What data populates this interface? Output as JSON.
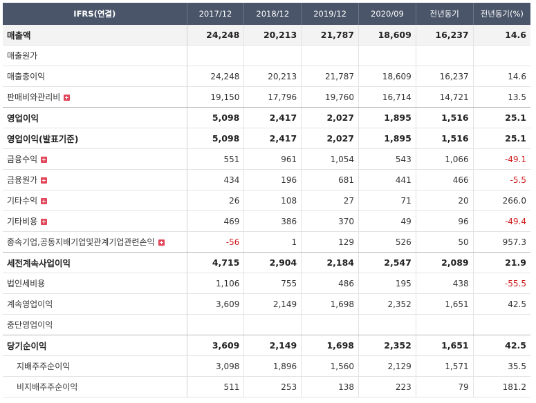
{
  "table": {
    "header": [
      "IFRS(연결)",
      "2017/12",
      "2018/12",
      "2019/12",
      "2020/09",
      "전년동기",
      "전년동기(%)"
    ],
    "rows": [
      {
        "label": "매출액",
        "bold": true,
        "expand": false,
        "indent": false,
        "values": [
          "24,248",
          "20,213",
          "21,787",
          "18,609",
          "16,237",
          "14.6"
        ]
      },
      {
        "label": "매출원가",
        "bold": false,
        "expand": false,
        "indent": false,
        "values": [
          "",
          "",
          "",
          "",
          "",
          ""
        ]
      },
      {
        "label": "매출총이익",
        "bold": false,
        "expand": false,
        "indent": false,
        "values": [
          "24,248",
          "20,213",
          "21,787",
          "18,609",
          "16,237",
          "14.6"
        ]
      },
      {
        "label": "판매비와관리비",
        "bold": false,
        "expand": true,
        "indent": false,
        "values": [
          "19,150",
          "17,796",
          "19,760",
          "16,714",
          "14,721",
          "13.5"
        ]
      },
      {
        "label": "영업이익",
        "bold": true,
        "expand": false,
        "indent": false,
        "values": [
          "5,098",
          "2,417",
          "2,027",
          "1,895",
          "1,516",
          "25.1"
        ]
      },
      {
        "label": "영업이익(발표기준)",
        "bold": true,
        "expand": false,
        "indent": false,
        "values": [
          "5,098",
          "2,417",
          "2,027",
          "1,895",
          "1,516",
          "25.1"
        ]
      },
      {
        "label": "금융수익",
        "bold": false,
        "expand": true,
        "indent": false,
        "values": [
          "551",
          "961",
          "1,054",
          "543",
          "1,066",
          "-49.1"
        ]
      },
      {
        "label": "금융원가",
        "bold": false,
        "expand": true,
        "indent": false,
        "values": [
          "434",
          "196",
          "681",
          "441",
          "466",
          "-5.5"
        ]
      },
      {
        "label": "기타수익",
        "bold": false,
        "expand": true,
        "indent": false,
        "values": [
          "26",
          "108",
          "27",
          "71",
          "20",
          "266.0"
        ]
      },
      {
        "label": "기타비용",
        "bold": false,
        "expand": true,
        "indent": false,
        "values": [
          "469",
          "386",
          "370",
          "49",
          "96",
          "-49.4"
        ]
      },
      {
        "label": "종속기업,공동지배기업및관계기업관련손익",
        "bold": false,
        "expand": true,
        "indent": false,
        "values": [
          "-56",
          "1",
          "129",
          "526",
          "50",
          "957.3"
        ]
      },
      {
        "label": "세전계속사업이익",
        "bold": true,
        "expand": false,
        "indent": false,
        "values": [
          "4,715",
          "2,904",
          "2,184",
          "2,547",
          "2,089",
          "21.9"
        ]
      },
      {
        "label": "법인세비용",
        "bold": false,
        "expand": false,
        "indent": false,
        "values": [
          "1,106",
          "755",
          "486",
          "195",
          "438",
          "-55.5"
        ]
      },
      {
        "label": "계속영업이익",
        "bold": false,
        "expand": false,
        "indent": false,
        "values": [
          "3,609",
          "2,149",
          "1,698",
          "2,352",
          "1,651",
          "42.5"
        ]
      },
      {
        "label": "중단영업이익",
        "bold": false,
        "expand": false,
        "indent": false,
        "values": [
          "",
          "",
          "",
          "",
          "",
          ""
        ]
      },
      {
        "label": "당기순이익",
        "bold": true,
        "expand": false,
        "indent": false,
        "values": [
          "3,609",
          "2,149",
          "1,698",
          "2,352",
          "1,651",
          "42.5"
        ]
      },
      {
        "label": "지배주주순이익",
        "bold": false,
        "expand": false,
        "indent": true,
        "values": [
          "3,098",
          "1,896",
          "1,560",
          "2,129",
          "1,571",
          "35.5"
        ]
      },
      {
        "label": "비지배주주순이익",
        "bold": false,
        "expand": false,
        "indent": true,
        "values": [
          "511",
          "253",
          "138",
          "223",
          "79",
          "181.2"
        ]
      }
    ]
  }
}
